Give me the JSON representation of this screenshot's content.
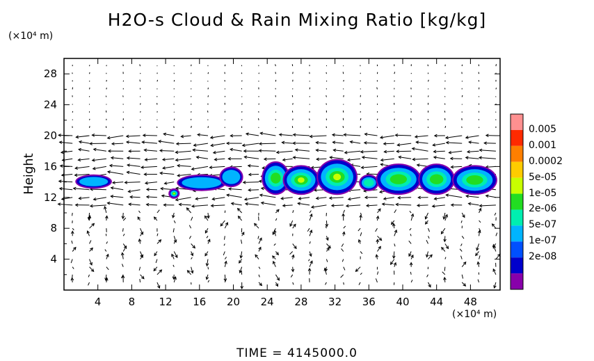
{
  "chart_data": {
    "type": "heatmap",
    "title": "H2O-s Cloud & Rain Mixing Ratio [kg/kg]",
    "ylabel": "Height",
    "y_unit": "(×10⁴ m)",
    "x_unit": "(×10⁴ m)",
    "xlim": [
      0,
      51.5
    ],
    "ylim": [
      0,
      30
    ],
    "x_ticks": [
      4,
      8,
      12,
      16,
      20,
      24,
      28,
      32,
      36,
      40,
      44,
      48
    ],
    "y_ticks": [
      4,
      8,
      12,
      16,
      20,
      24,
      28
    ],
    "colorbar": {
      "labels": [
        "0.005",
        "0.001",
        "0.0002",
        "5e-05",
        "1e-05",
        "2e-06",
        "5e-07",
        "1e-07",
        "2e-08"
      ],
      "colors": [
        "#ff9090",
        "#ff2a00",
        "#ff7f00",
        "#ffcc00",
        "#c8ff00",
        "#22dd22",
        "#00eeb0",
        "#00b4ff",
        "#0050ff",
        "#0000cc",
        "#8800aa"
      ]
    },
    "cloud_regions": [
      {
        "x": [
          1.5,
          5.5
        ],
        "y": [
          13.3,
          14.8
        ],
        "level": "1e-07"
      },
      {
        "x": [
          12.5,
          13.5
        ],
        "y": [
          12.0,
          13.0
        ],
        "level": "5e-05"
      },
      {
        "x": [
          13.5,
          19.0
        ],
        "y": [
          13.0,
          14.8
        ],
        "level": "1e-07"
      },
      {
        "x": [
          18.5,
          21.0
        ],
        "y": [
          13.5,
          15.8
        ],
        "level": "1e-07"
      },
      {
        "x": [
          23.5,
          26.5
        ],
        "y": [
          12.5,
          16.5
        ],
        "level": "1e-05"
      },
      {
        "x": [
          26.0,
          30.0
        ],
        "y": [
          12.5,
          16.0
        ],
        "level": "5e-05"
      },
      {
        "x": [
          30.0,
          34.5
        ],
        "y": [
          12.5,
          16.8
        ],
        "level": "5e-05"
      },
      {
        "x": [
          35.0,
          37.0
        ],
        "y": [
          13.0,
          14.8
        ],
        "level": "2e-06"
      },
      {
        "x": [
          37.0,
          42.0
        ],
        "y": [
          12.5,
          16.2
        ],
        "level": "1e-05"
      },
      {
        "x": [
          42.0,
          46.0
        ],
        "y": [
          12.5,
          16.2
        ],
        "level": "1e-05"
      },
      {
        "x": [
          46.0,
          51.0
        ],
        "y": [
          12.5,
          16.0
        ],
        "level": "1e-05"
      }
    ],
    "wind_field": {
      "description_free": true,
      "dominant_direction_aloft": "westward"
    }
  },
  "time_label": "TIME  =  4145000.0"
}
